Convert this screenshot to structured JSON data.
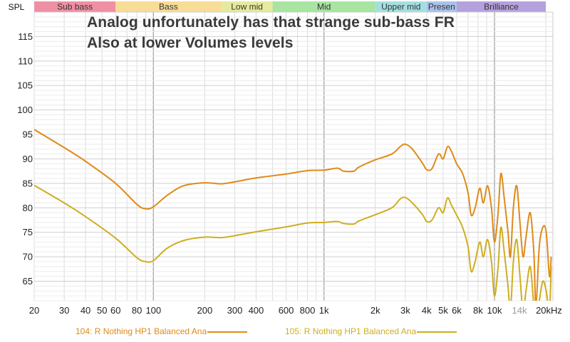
{
  "chart_data": {
    "type": "line",
    "title": "",
    "ylabel": "SPL",
    "xlabel": "",
    "x_scale": "log",
    "xlim": [
      20,
      22000
    ],
    "ylim": [
      61,
      120
    ],
    "grid": true,
    "legend_placement": "bottom",
    "annotations": [
      "Analog unfortunately has that strange sub-bass FR",
      "Also at lower Volumes levels"
    ],
    "bands": [
      {
        "label": "Sub bass",
        "from": 20,
        "to": 60,
        "color": "#ef8fa3"
      },
      {
        "label": "Bass",
        "from": 60,
        "to": 250,
        "color": "#f8dd97"
      },
      {
        "label": "Low mid",
        "from": 250,
        "to": 500,
        "color": "#e5ea9d"
      },
      {
        "label": "Mid",
        "from": 500,
        "to": 2000,
        "color": "#a8e4a2"
      },
      {
        "label": "Upper mid",
        "from": 2000,
        "to": 4000,
        "color": "#a4dfe0"
      },
      {
        "label": "Presen",
        "from": 4000,
        "to": 6000,
        "color": "#a9c2ea"
      },
      {
        "label": "Brilliance",
        "from": 6000,
        "to": 20000,
        "color": "#b4a1dd"
      }
    ],
    "y_ticks": [
      65,
      70,
      75,
      80,
      85,
      90,
      95,
      100,
      105,
      110,
      115
    ],
    "x_ticks": [
      {
        "value": 20,
        "label": "20"
      },
      {
        "value": 30,
        "label": "30"
      },
      {
        "value": 40,
        "label": "40"
      },
      {
        "value": 50,
        "label": "50"
      },
      {
        "value": 60,
        "label": "60"
      },
      {
        "value": 80,
        "label": "80"
      },
      {
        "value": 100,
        "label": "100"
      },
      {
        "value": 200,
        "label": "200"
      },
      {
        "value": 300,
        "label": "300"
      },
      {
        "value": 400,
        "label": "400"
      },
      {
        "value": 600,
        "label": "600"
      },
      {
        "value": 800,
        "label": "800"
      },
      {
        "value": 1000,
        "label": "1k"
      },
      {
        "value": 2000,
        "label": "2k"
      },
      {
        "value": 3000,
        "label": "3k"
      },
      {
        "value": 4000,
        "label": "4k"
      },
      {
        "value": 5000,
        "label": "5k"
      },
      {
        "value": 6000,
        "label": "6k"
      },
      {
        "value": 8000,
        "label": "8k"
      },
      {
        "value": 10000,
        "label": "10k"
      },
      {
        "value": 14000,
        "label": "14k"
      },
      {
        "value": 20000,
        "label": "20kHz"
      }
    ],
    "series": [
      {
        "name": "104: R Nothing HP1 Balanced Ana",
        "color": "#df8a17",
        "points": [
          [
            20,
            96
          ],
          [
            30,
            92.3
          ],
          [
            40,
            89.5
          ],
          [
            60,
            85
          ],
          [
            80,
            80.7
          ],
          [
            90,
            79.8
          ],
          [
            100,
            80.2
          ],
          [
            120,
            82.5
          ],
          [
            150,
            84.5
          ],
          [
            200,
            85.1
          ],
          [
            250,
            84.9
          ],
          [
            300,
            85.3
          ],
          [
            400,
            86.1
          ],
          [
            600,
            86.9
          ],
          [
            800,
            87.6
          ],
          [
            1000,
            87.7
          ],
          [
            1200,
            88.1
          ],
          [
            1300,
            87.5
          ],
          [
            1500,
            87.5
          ],
          [
            1600,
            88.3
          ],
          [
            2000,
            89.8
          ],
          [
            2500,
            91
          ],
          [
            2800,
            92.5
          ],
          [
            3000,
            93
          ],
          [
            3300,
            92
          ],
          [
            3800,
            89
          ],
          [
            4000,
            87.8
          ],
          [
            4300,
            88
          ],
          [
            4700,
            91
          ],
          [
            5000,
            90
          ],
          [
            5300,
            92.5
          ],
          [
            5600,
            91.5
          ],
          [
            6000,
            89
          ],
          [
            6500,
            87
          ],
          [
            7000,
            83
          ],
          [
            7300,
            78.5
          ],
          [
            7700,
            80
          ],
          [
            8200,
            84
          ],
          [
            8600,
            81
          ],
          [
            9100,
            84.5
          ],
          [
            9600,
            80
          ],
          [
            10000,
            73
          ],
          [
            10500,
            79
          ],
          [
            10900,
            87
          ],
          [
            11400,
            82
          ],
          [
            12000,
            75
          ],
          [
            12400,
            70
          ],
          [
            12900,
            80
          ],
          [
            13500,
            84.5
          ],
          [
            14100,
            77
          ],
          [
            14700,
            70
          ],
          [
            15300,
            74
          ],
          [
            16200,
            79
          ],
          [
            17000,
            71
          ],
          [
            17500,
            60
          ],
          [
            18300,
            72
          ],
          [
            19200,
            76
          ],
          [
            20100,
            75
          ],
          [
            21000,
            66
          ],
          [
            21500,
            70
          ]
        ]
      },
      {
        "name": "105: R Nothing HP1 Balanced Ana",
        "color": "#ceae1f",
        "points": [
          [
            20,
            84.6
          ],
          [
            30,
            81
          ],
          [
            40,
            78.2
          ],
          [
            60,
            73.8
          ],
          [
            80,
            69.8
          ],
          [
            90,
            69
          ],
          [
            100,
            69.2
          ],
          [
            120,
            71.7
          ],
          [
            150,
            73.3
          ],
          [
            200,
            74
          ],
          [
            250,
            73.9
          ],
          [
            300,
            74.3
          ],
          [
            400,
            75.1
          ],
          [
            600,
            76.1
          ],
          [
            800,
            76.9
          ],
          [
            1000,
            77
          ],
          [
            1200,
            77.2
          ],
          [
            1300,
            76.8
          ],
          [
            1500,
            76.7
          ],
          [
            1600,
            77.3
          ],
          [
            2000,
            78.6
          ],
          [
            2500,
            80
          ],
          [
            2800,
            81.8
          ],
          [
            3000,
            82.1
          ],
          [
            3300,
            81
          ],
          [
            3800,
            78.5
          ],
          [
            4000,
            77.2
          ],
          [
            4300,
            77.5
          ],
          [
            4700,
            80
          ],
          [
            5000,
            79
          ],
          [
            5300,
            82
          ],
          [
            5600,
            80.5
          ],
          [
            6000,
            78.5
          ],
          [
            6500,
            76
          ],
          [
            7000,
            72
          ],
          [
            7300,
            67
          ],
          [
            7700,
            69
          ],
          [
            8200,
            73
          ],
          [
            8600,
            70
          ],
          [
            9100,
            73.5
          ],
          [
            9600,
            69
          ],
          [
            10000,
            62
          ],
          [
            10500,
            68
          ],
          [
            10900,
            76
          ],
          [
            11400,
            71
          ],
          [
            12000,
            64
          ],
          [
            12400,
            59
          ],
          [
            12900,
            69
          ],
          [
            13500,
            73.5
          ],
          [
            14100,
            66
          ],
          [
            14700,
            59
          ],
          [
            15300,
            63
          ],
          [
            16200,
            68
          ],
          [
            17000,
            60
          ],
          [
            17500,
            58
          ],
          [
            18300,
            61
          ],
          [
            19200,
            65
          ],
          [
            20100,
            63
          ],
          [
            21000,
            59
          ],
          [
            21500,
            68
          ]
        ]
      }
    ]
  }
}
